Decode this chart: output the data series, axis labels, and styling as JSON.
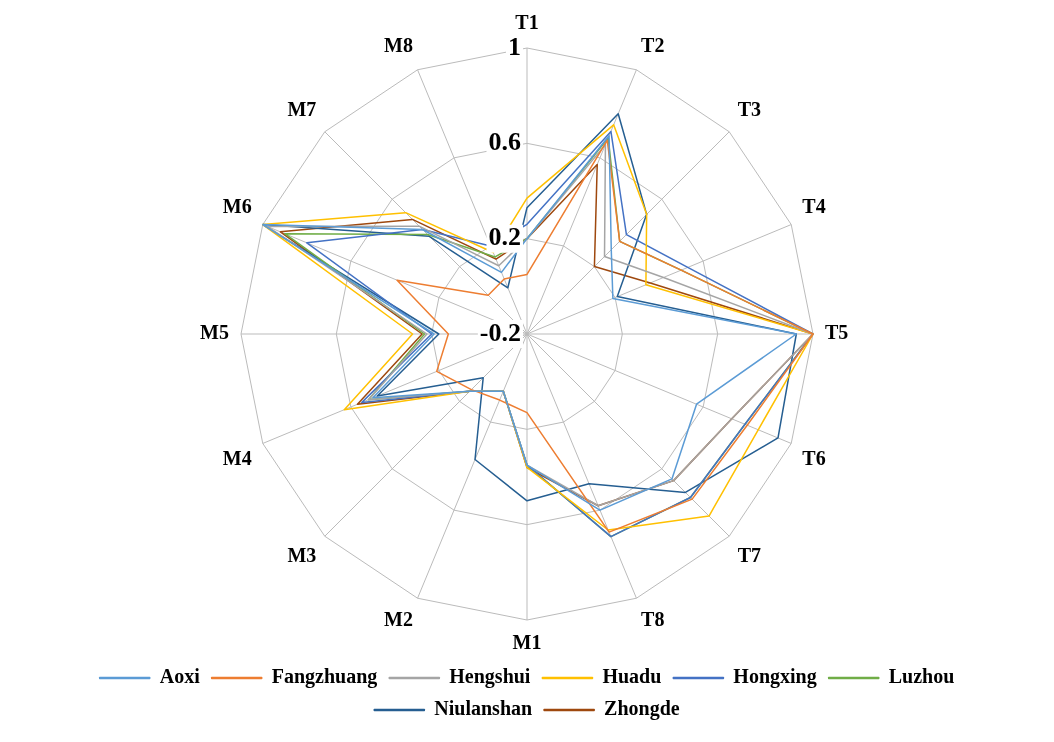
{
  "chart_data": {
    "type": "radar",
    "categories": [
      "T1",
      "T2",
      "T3",
      "T4",
      "T5",
      "T6",
      "T7",
      "T8",
      "M1",
      "M2",
      "M3",
      "M4",
      "M5",
      "M6",
      "M7",
      "M8"
    ],
    "ylim": [
      -0.2,
      1
    ],
    "yticks": [
      -0.2,
      0.2,
      0.6,
      1
    ],
    "grid": true,
    "legend": "bottom",
    "marker": "none",
    "line_style": "solid",
    "series": [
      {
        "name": "Aoxi",
        "color": "#5b9bd5",
        "values": [
          0.2,
          0.7,
          0.3,
          0.19,
          0.93,
          0.57,
          0.66,
          0.6,
          0.35,
          0.06,
          0.14,
          0.5,
          0.19,
          1,
          0.42,
          0.08
        ]
      },
      {
        "name": "Fangzhuang",
        "color": "#ed7d31",
        "values": [
          0.05,
          0.68,
          0.35,
          0.5,
          1,
          0.8,
          0.78,
          0.7,
          0.13,
          0.1,
          0.13,
          0.21,
          0.13,
          0.39,
          0.03,
          0.05
        ]
      },
      {
        "name": "Hengshui",
        "color": "#a5a5a5",
        "values": [
          0.2,
          0.66,
          0.26,
          0.42,
          1,
          0.73,
          0.67,
          0.58,
          0.35,
          0.06,
          0.14,
          0.52,
          0.22,
          0.98,
          0.44,
          0.11
        ]
      },
      {
        "name": "Huadu",
        "color": "#ffc000",
        "values": [
          0.37,
          0.75,
          0.51,
          0.34,
          1,
          0.85,
          0.88,
          0.69,
          0.36,
          0.06,
          0.14,
          0.63,
          0.28,
          1,
          0.52,
          0.17
        ]
      },
      {
        "name": "Hongxing",
        "color": "#4472c4",
        "values": [
          0.26,
          0.72,
          0.39,
          0.53,
          1,
          0.79,
          0.77,
          0.72,
          0.35,
          0.06,
          0.14,
          0.55,
          0.2,
          0.8,
          0.42,
          0.2
        ]
      },
      {
        "name": "Luzhou",
        "color": "#70ad47",
        "values": [
          0.2,
          0.69,
          0.35,
          0.5,
          1,
          0.79,
          0.77,
          0.72,
          0.35,
          0.06,
          0.14,
          0.52,
          0.23,
          0.9,
          0.39,
          0.15
        ]
      },
      {
        "name": "Niulanshan",
        "color": "#255e91",
        "values": [
          0.33,
          0.8,
          0.51,
          0.21,
          0.93,
          0.94,
          0.74,
          0.48,
          0.5,
          0.37,
          0.06,
          0.48,
          0.17,
          1,
          0.38,
          0.01
        ]
      },
      {
        "name": "Zhongde",
        "color": "#9e480e",
        "values": [
          0.2,
          0.57,
          0.2,
          0.36,
          1,
          0.73,
          0.67,
          0.58,
          0.36,
          0.06,
          0.14,
          0.57,
          0.24,
          0.92,
          0.48,
          0.14
        ]
      }
    ]
  }
}
